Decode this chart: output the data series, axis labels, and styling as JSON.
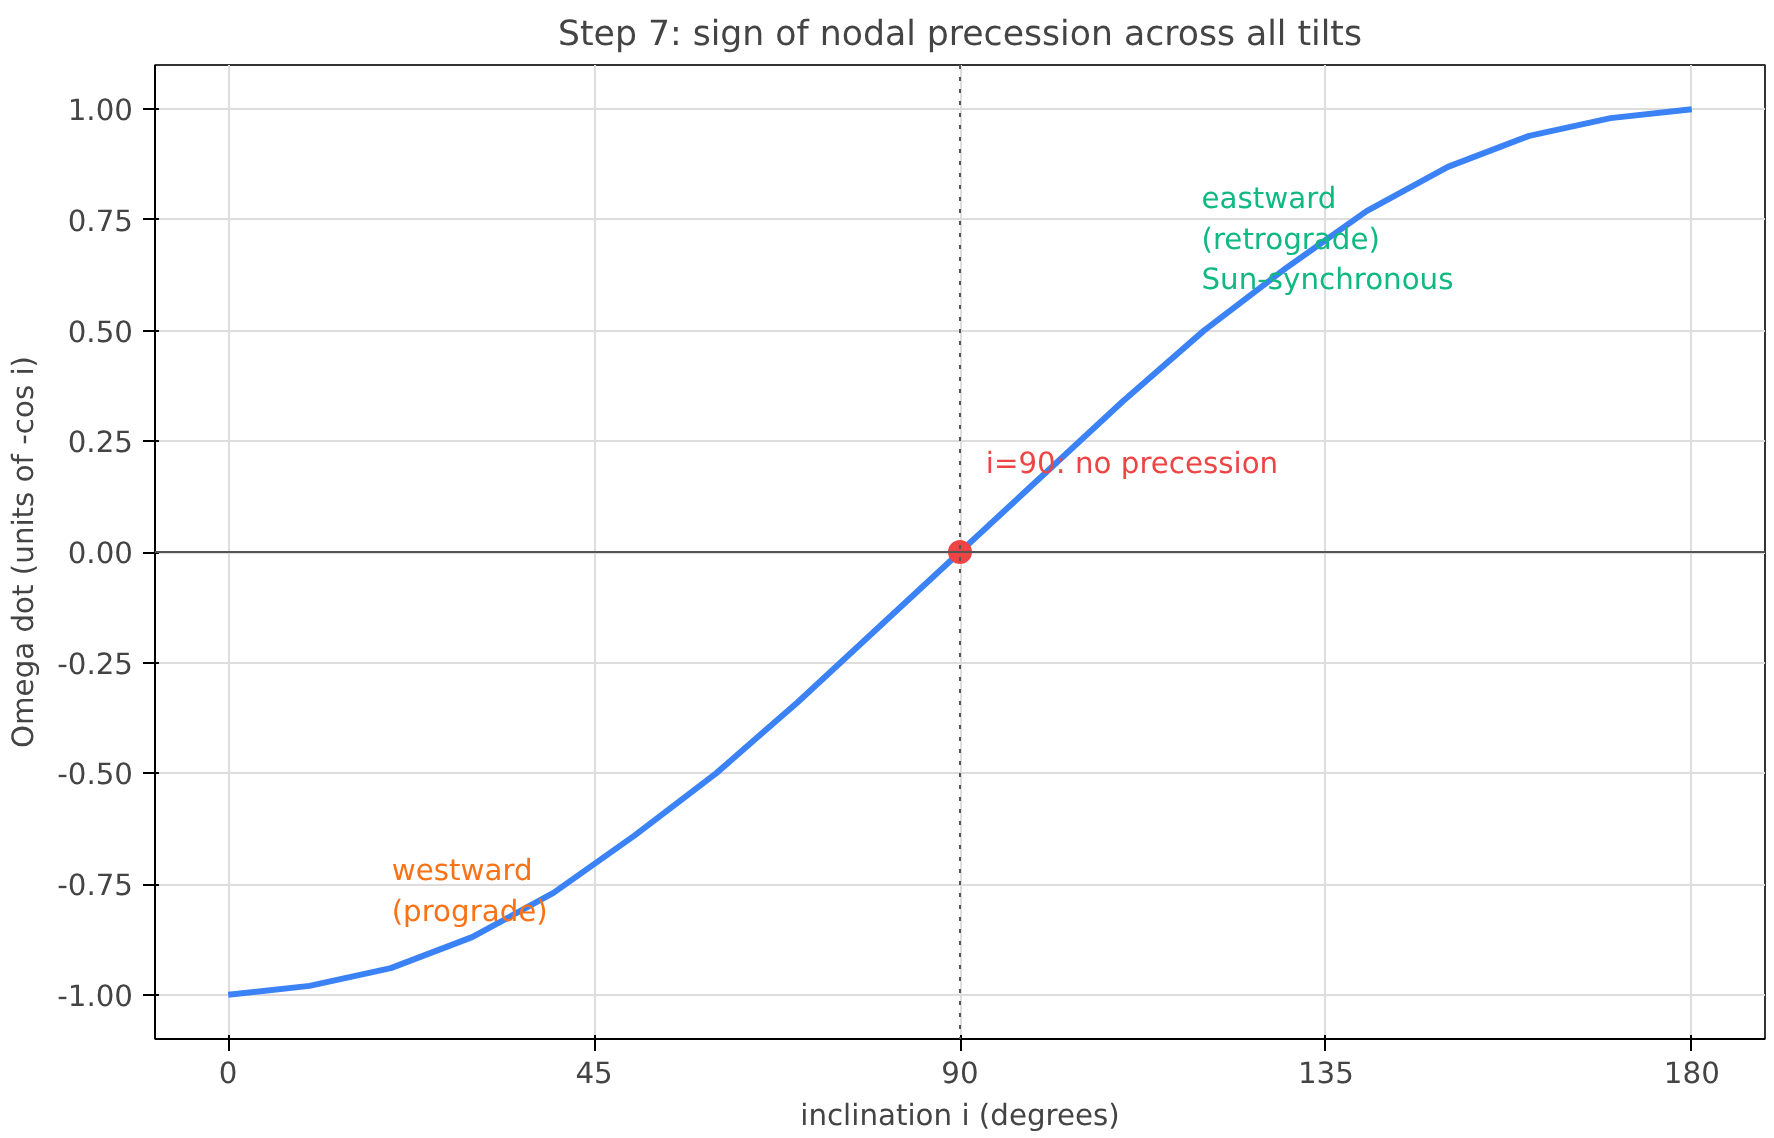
{
  "chart_data": {
    "type": "line",
    "title": "Step 7: sign of nodal precession across all tilts",
    "xlabel": "inclination i (degrees)",
    "ylabel": "Omega dot (units of -cos i)",
    "series": [
      {
        "color": "#3b82f6",
        "x": [
          0,
          10,
          20,
          30,
          40,
          50,
          60,
          70,
          80,
          90,
          100,
          110,
          120,
          130,
          140,
          150,
          160,
          170,
          180
        ],
        "values": [
          -1.0,
          -0.98,
          -0.94,
          -0.87,
          -0.77,
          -0.64,
          -0.5,
          -0.34,
          -0.17,
          0.0,
          0.17,
          0.34,
          0.5,
          0.64,
          0.77,
          0.87,
          0.94,
          0.98,
          1.0
        ]
      },
      {
        "type": "scatter",
        "marker": "circle",
        "color": "#ef4444",
        "x": [
          90
        ],
        "values": [
          0.0
        ]
      }
    ],
    "xlim": [
      -9,
      189
    ],
    "ylim": [
      -1.1,
      1.1
    ],
    "xticks": [
      0,
      45,
      90,
      135,
      180
    ],
    "yticks": [
      {
        "value": -1.0,
        "label": "-1.00"
      },
      -0.75,
      {
        "value": -0.5,
        "label": "-0.50"
      },
      -0.25,
      {
        "value": 0,
        "label": "0.00"
      },
      0.25,
      {
        "value": 0.5,
        "label": "0.50"
      },
      0.75,
      {
        "value": 1.0,
        "label": "1.00"
      }
    ],
    "ref_lines": [
      {
        "axis": "x",
        "value": 90,
        "color": "#555555",
        "line_style": "dotted"
      },
      {
        "axis": "y",
        "value": 0,
        "color": "#555555",
        "line_style": "solid"
      }
    ],
    "annotations": [
      "i=90: no precession",
      "eastward\n(retrograde)\nSun-synchronous",
      "westward\n(prograde)"
    ],
    "grid": true,
    "marker": "none",
    "line_style": "solid"
  }
}
